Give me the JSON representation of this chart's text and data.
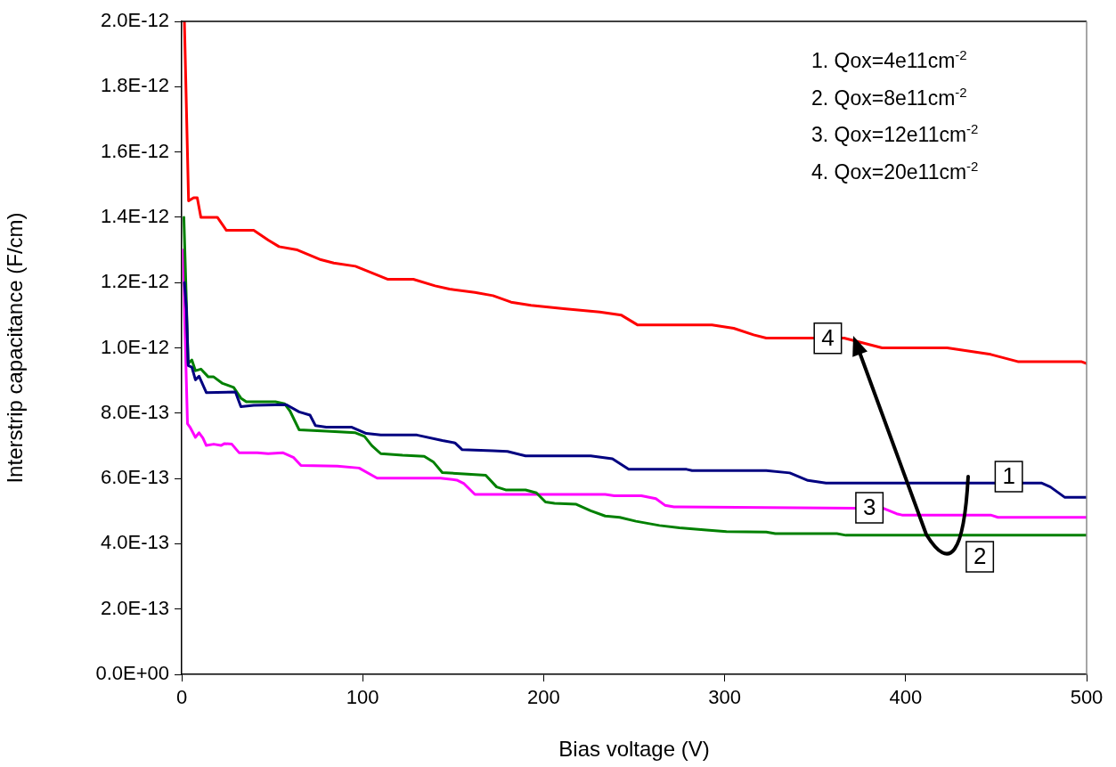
{
  "chart_data": {
    "type": "line",
    "xlabel": "Bias voltage (V)",
    "ylabel": "Interstrip capacitance (F/cm)",
    "xlim": [
      0,
      500
    ],
    "xticks": [
      0,
      100,
      200,
      300,
      400,
      500
    ],
    "ylim": [
      0,
      2e-12
    ],
    "yticks": [
      {
        "value": 0,
        "label": "0.0E+00"
      },
      {
        "value": 2e-13,
        "label": "2.0E-13"
      },
      {
        "value": 4e-13,
        "label": "4.0E-13"
      },
      {
        "value": 6e-13,
        "label": "6.0E-13"
      },
      {
        "value": 8e-13,
        "label": "8.0E-13"
      },
      {
        "value": 1e-12,
        "label": "1.0E-12"
      },
      {
        "value": 1.2e-12,
        "label": "1.2E-12"
      },
      {
        "value": 1.4e-12,
        "label": "1.4E-12"
      },
      {
        "value": 1.6e-12,
        "label": "1.6E-12"
      },
      {
        "value": 1.8e-12,
        "label": "1.8E-12"
      },
      {
        "value": 2e-12,
        "label": "2.0E-12"
      }
    ],
    "marker": "none",
    "line_style": "solid",
    "series": [
      {
        "color": "#000080",
        "x": [
          1.5,
          2.6,
          3.6,
          5.6,
          7.6,
          9.6,
          13.6,
          29.7,
          32.7,
          39.8,
          57.8,
          64.9,
          70.9,
          73.9,
          79.9,
          94,
          102,
          110,
          130,
          144,
          151,
          155,
          172,
          180,
          190,
          226,
          238,
          247,
          279,
          282,
          323,
          336,
          346,
          356,
          475,
          480,
          488,
          500
        ],
        "values": [
          1.2e-12,
          1.12e-12,
          9.46e-13,
          9.41e-13,
          9.02e-13,
          9.13e-13,
          8.63e-13,
          8.65e-13,
          8.2e-13,
          8.24e-13,
          8.26e-13,
          8.04e-13,
          7.94e-13,
          7.62e-13,
          7.57e-13,
          7.57e-13,
          7.38e-13,
          7.33e-13,
          7.33e-13,
          7.16e-13,
          7.09e-13,
          6.88e-13,
          6.85e-13,
          6.83e-13,
          6.69e-13,
          6.69e-13,
          6.6e-13,
          6.28e-13,
          6.28e-13,
          6.24e-13,
          6.24e-13,
          6.17e-13,
          5.94e-13,
          5.86e-13,
          5.86e-13,
          5.74e-13,
          5.42e-13,
          5.42e-13
        ]
      },
      {
        "color": "#008000",
        "x": [
          1.2,
          3.6,
          5.6,
          7.6,
          10.6,
          14.7,
          17.7,
          22.6,
          25.7,
          28.7,
          32.7,
          35.7,
          51.8,
          56.8,
          59.8,
          64.9,
          79.9,
          96,
          101,
          105,
          110,
          122,
          134,
          139,
          144,
          156,
          168,
          174,
          179,
          190,
          196,
          201,
          206,
          218,
          226,
          234,
          242,
          251,
          264,
          275,
          290,
          301,
          323,
          328,
          362,
          367,
          500
        ],
        "values": [
          1.4e-12,
          9.52e-13,
          9.63e-13,
          9.3e-13,
          9.35e-13,
          9.11e-13,
          9.11e-13,
          8.91e-13,
          8.85e-13,
          8.79e-13,
          8.46e-13,
          8.35e-13,
          8.35e-13,
          8.29e-13,
          8.07e-13,
          7.49e-13,
          7.45e-13,
          7.4e-13,
          7.29e-13,
          7.01e-13,
          6.76e-13,
          6.71e-13,
          6.68e-13,
          6.51e-13,
          6.18e-13,
          6.14e-13,
          6.1e-13,
          5.74e-13,
          5.65e-13,
          5.65e-13,
          5.56e-13,
          5.28e-13,
          5.24e-13,
          5.21e-13,
          5.01e-13,
          4.85e-13,
          4.81e-13,
          4.69e-13,
          4.56e-13,
          4.49e-13,
          4.42e-13,
          4.37e-13,
          4.36e-13,
          4.31e-13,
          4.31e-13,
          4.26e-13,
          4.26e-13
        ]
      },
      {
        "color": "#ff00ff",
        "x": [
          1,
          1.6,
          3.2,
          4.6,
          7.6,
          9.6,
          11.7,
          13.6,
          17.7,
          21.7,
          23.7,
          27.7,
          31.7,
          41.8,
          47.8,
          55.8,
          61.9,
          65.9,
          86,
          98,
          106,
          108,
          143,
          152,
          156,
          162,
          234,
          239,
          254,
          262,
          267,
          272,
          388,
          395,
          398,
          447,
          451,
          500
        ],
        "values": [
          1.3e-12,
          1.1e-12,
          7.68e-13,
          7.57e-13,
          7.26e-13,
          7.4e-13,
          7.24e-13,
          7.01e-13,
          7.05e-13,
          7.01e-13,
          7.07e-13,
          7.05e-13,
          6.79e-13,
          6.79e-13,
          6.76e-13,
          6.79e-13,
          6.64e-13,
          6.4e-13,
          6.38e-13,
          6.32e-13,
          6.07e-13,
          6.01e-13,
          6.01e-13,
          5.95e-13,
          5.84e-13,
          5.51e-13,
          5.51e-13,
          5.47e-13,
          5.47e-13,
          5.38e-13,
          5.18e-13,
          5.13e-13,
          5.08e-13,
          4.92e-13,
          4.88e-13,
          4.88e-13,
          4.81e-13,
          4.81e-13
        ]
      },
      {
        "color": "#ff0000",
        "x": [
          1.5,
          3.8,
          6.6,
          8.6,
          10.6,
          19.7,
          24.7,
          27.7,
          39.8,
          47.8,
          53.8,
          63.9,
          76.9,
          84,
          96,
          114,
          128,
          140,
          148,
          162,
          172,
          182,
          193,
          211,
          231,
          243,
          252,
          279,
          293,
          305,
          316,
          323,
          343,
          366,
          387,
          423,
          447,
          462,
          497,
          500
        ],
        "values": [
          2e-12,
          1.45e-12,
          1.46e-12,
          1.46e-12,
          1.4e-12,
          1.4e-12,
          1.36e-12,
          1.36e-12,
          1.36e-12,
          1.33e-12,
          1.31e-12,
          1.3e-12,
          1.27e-12,
          1.26e-12,
          1.25e-12,
          1.21e-12,
          1.21e-12,
          1.19e-12,
          1.18e-12,
          1.17e-12,
          1.16e-12,
          1.14e-12,
          1.13e-12,
          1.12e-12,
          1.11e-12,
          1.1e-12,
          1.07e-12,
          1.07e-12,
          1.07e-12,
          1.06e-12,
          1.04e-12,
          1.03e-12,
          1.03e-12,
          1.03e-12,
          1e-12,
          1e-12,
          9.8e-13,
          9.58e-13,
          9.58e-13,
          9.52e-13
        ]
      }
    ],
    "annotations": [
      "1. Qox=4e11cm$^{-2}$",
      "2. Qox=8e11cm$^{-2}$",
      "3. Qox=12e11cm$^{-2}$",
      "4. Qox=20e11cm$^{-2}$",
      {
        "text": "4",
        "x": 357,
        "y": 1.029e-12
      },
      {
        "text": "1",
        "x": 457,
        "y": 6.06e-13
      },
      {
        "text": "3",
        "x": 380,
        "y": 5.1e-13
      },
      {
        "text": "2",
        "x": 441,
        "y": 3.6e-13
      }
    ]
  }
}
